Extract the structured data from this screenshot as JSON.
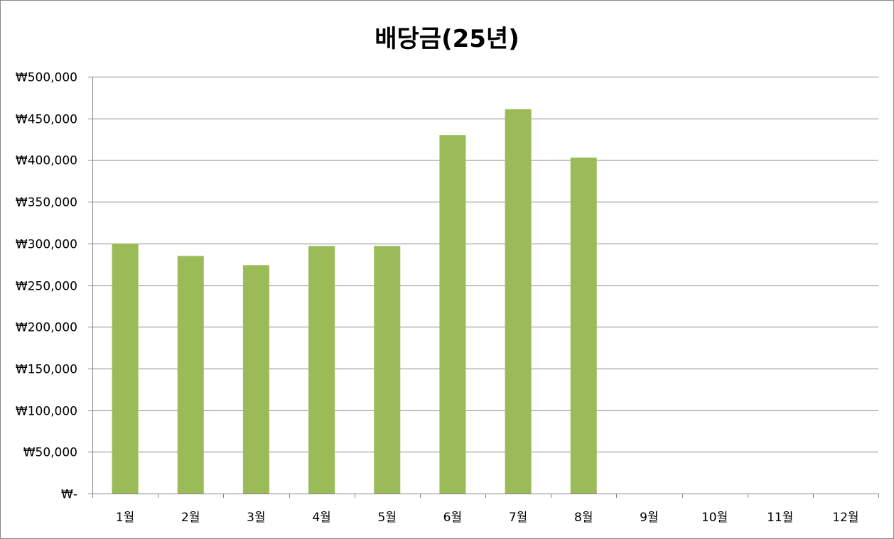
{
  "chart_data": {
    "type": "bar",
    "title": "배당금(25년)",
    "xlabel": "",
    "ylabel": "",
    "categories": [
      "1월",
      "2월",
      "3월",
      "4월",
      "5월",
      "6월",
      "7월",
      "8월",
      "9월",
      "10월",
      "11월",
      "12월"
    ],
    "values": [
      300000,
      285000,
      274000,
      297000,
      297000,
      430000,
      461000,
      403000,
      null,
      null,
      null,
      null
    ],
    "ylim": [
      0,
      500000
    ],
    "yticks": [
      0,
      50000,
      100000,
      150000,
      200000,
      250000,
      300000,
      350000,
      400000,
      450000,
      500000
    ],
    "ytick_labels": [
      "₩-",
      "₩50,000",
      "₩100,000",
      "₩150,000",
      "₩200,000",
      "₩250,000",
      "₩300,000",
      "₩350,000",
      "₩400,000",
      "₩450,000",
      "₩500,000"
    ],
    "grid": true,
    "legend": "none",
    "colors": {
      "bar": "#9BBB59",
      "grid": "#868686",
      "axis": "#868686"
    }
  }
}
